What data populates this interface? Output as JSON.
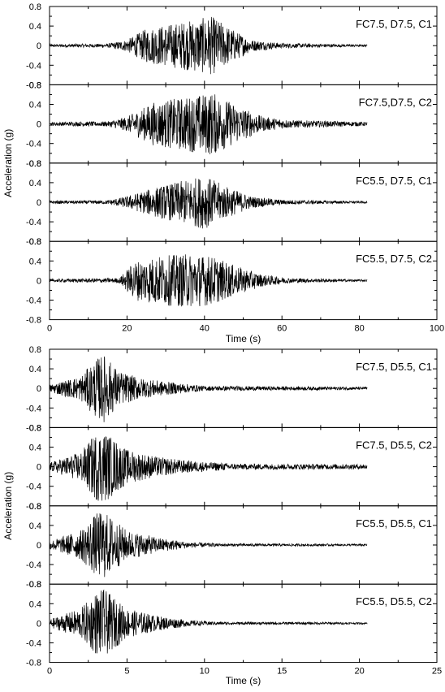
{
  "chart_data": [
    {
      "type": "line",
      "xlabel": "Time (s)",
      "ylabel": "Acceleration (g)",
      "xlim": [
        0,
        100
      ],
      "xticks": [
        "0",
        "20",
        "40",
        "60",
        "80",
        "100"
      ],
      "ylim": [
        -0.8,
        0.8
      ],
      "yticks": [
        "0.8",
        "0.4",
        "0",
        "-0.4",
        "-0.8"
      ],
      "panels": [
        {
          "label": "FC7.5, D7.5, C1",
          "duration": 82,
          "env": [
            [
              0,
              0.03
            ],
            [
              15,
              0.04
            ],
            [
              20,
              0.12
            ],
            [
              25,
              0.35
            ],
            [
              35,
              0.5
            ],
            [
              42,
              0.6
            ],
            [
              47,
              0.35
            ],
            [
              52,
              0.12
            ],
            [
              60,
              0.05
            ],
            [
              82,
              0.02
            ]
          ],
          "peak": 0.65
        },
        {
          "label": "FC7.5,D7.5, C2",
          "duration": 82,
          "env": [
            [
              0,
              0.04
            ],
            [
              15,
              0.05
            ],
            [
              20,
              0.15
            ],
            [
              27,
              0.45
            ],
            [
              35,
              0.55
            ],
            [
              42,
              0.65
            ],
            [
              48,
              0.4
            ],
            [
              55,
              0.15
            ],
            [
              62,
              0.08
            ],
            [
              82,
              0.04
            ]
          ],
          "peak": 0.7
        },
        {
          "label": "FC5.5, D7.5, C1",
          "duration": 82,
          "env": [
            [
              0,
              0.03
            ],
            [
              15,
              0.04
            ],
            [
              20,
              0.12
            ],
            [
              27,
              0.3
            ],
            [
              35,
              0.45
            ],
            [
              40,
              0.55
            ],
            [
              45,
              0.35
            ],
            [
              52,
              0.12
            ],
            [
              60,
              0.05
            ],
            [
              82,
              0.02
            ]
          ],
          "peak": 0.55
        },
        {
          "label": "FC5.5, D7.5, C2",
          "duration": 82,
          "env": [
            [
              0,
              0.03
            ],
            [
              18,
              0.05
            ],
            [
              22,
              0.4
            ],
            [
              28,
              0.5
            ],
            [
              36,
              0.55
            ],
            [
              42,
              0.5
            ],
            [
              48,
              0.3
            ],
            [
              55,
              0.12
            ],
            [
              62,
              0.05
            ],
            [
              82,
              0.02
            ]
          ],
          "peak": 0.65
        }
      ]
    },
    {
      "type": "line",
      "xlabel": "Time (s)",
      "ylabel": "Acceleration (g)",
      "xlim": [
        0,
        25
      ],
      "xticks": [
        "0",
        "5",
        "10",
        "15",
        "20",
        "25"
      ],
      "ylim": [
        -0.8,
        0.8
      ],
      "yticks": [
        "0.8",
        "0.4",
        "0",
        "-0.4",
        "-0.8"
      ],
      "panels": [
        {
          "label": "FC7.5, D5.5, C1",
          "duration": 20.5,
          "env": [
            [
              0,
              0.08
            ],
            [
              2,
              0.25
            ],
            [
              3,
              0.6
            ],
            [
              3.5,
              0.7
            ],
            [
              4.5,
              0.35
            ],
            [
              6,
              0.2
            ],
            [
              8,
              0.12
            ],
            [
              10,
              0.05
            ],
            [
              20.5,
              0.03
            ]
          ],
          "peak": 0.72
        },
        {
          "label": "FC7.5, D5.5, C2",
          "duration": 20.5,
          "env": [
            [
              0,
              0.08
            ],
            [
              2,
              0.3
            ],
            [
              3,
              0.7
            ],
            [
              3.5,
              0.75
            ],
            [
              5,
              0.35
            ],
            [
              7,
              0.2
            ],
            [
              9,
              0.12
            ],
            [
              12,
              0.06
            ],
            [
              20.5,
              0.05
            ]
          ],
          "peak": 0.75
        },
        {
          "label": "FC5.5, D5.5, C1",
          "duration": 20.5,
          "env": [
            [
              0,
              0.08
            ],
            [
              2,
              0.3
            ],
            [
              3,
              0.65
            ],
            [
              3.5,
              0.7
            ],
            [
              5,
              0.3
            ],
            [
              7,
              0.15
            ],
            [
              9,
              0.06
            ],
            [
              11,
              0.03
            ],
            [
              20.5,
              0.02
            ]
          ],
          "peak": 0.72
        },
        {
          "label": "FC5.5, D5.5, C2",
          "duration": 20.5,
          "env": [
            [
              0,
              0.08
            ],
            [
              2,
              0.3
            ],
            [
              3,
              0.65
            ],
            [
              3.5,
              0.7
            ],
            [
              5,
              0.3
            ],
            [
              7,
              0.15
            ],
            [
              9,
              0.06
            ],
            [
              11,
              0.03
            ],
            [
              20.5,
              0.02
            ]
          ],
          "peak": 0.72
        }
      ]
    }
  ]
}
